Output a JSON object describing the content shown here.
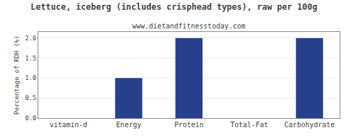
{
  "chart_data": {
    "type": "bar",
    "title": "Lettuce, iceberg (includes crisphead types), raw per 100g",
    "subtitle": "www.dietandfitnesstoday.com",
    "categories": [
      "vitamin-d",
      "Energy",
      "Protein",
      "Total-Fat",
      "Carbohydrate"
    ],
    "values": [
      0.0,
      1.0,
      2.0,
      0.0,
      2.0
    ],
    "color": "#27408b",
    "ylabel": "Percentage of RDH (%)",
    "ylim": [
      0,
      2.15
    ],
    "yticks": [
      {
        "value": 0,
        "label": "0.0"
      },
      {
        "value": 0.5,
        "label": "0.5"
      },
      {
        "value": 1,
        "label": "1.0"
      },
      {
        "value": 1.5,
        "label": "1.5"
      },
      {
        "value": 2,
        "label": "2.0"
      }
    ],
    "grid": true
  }
}
